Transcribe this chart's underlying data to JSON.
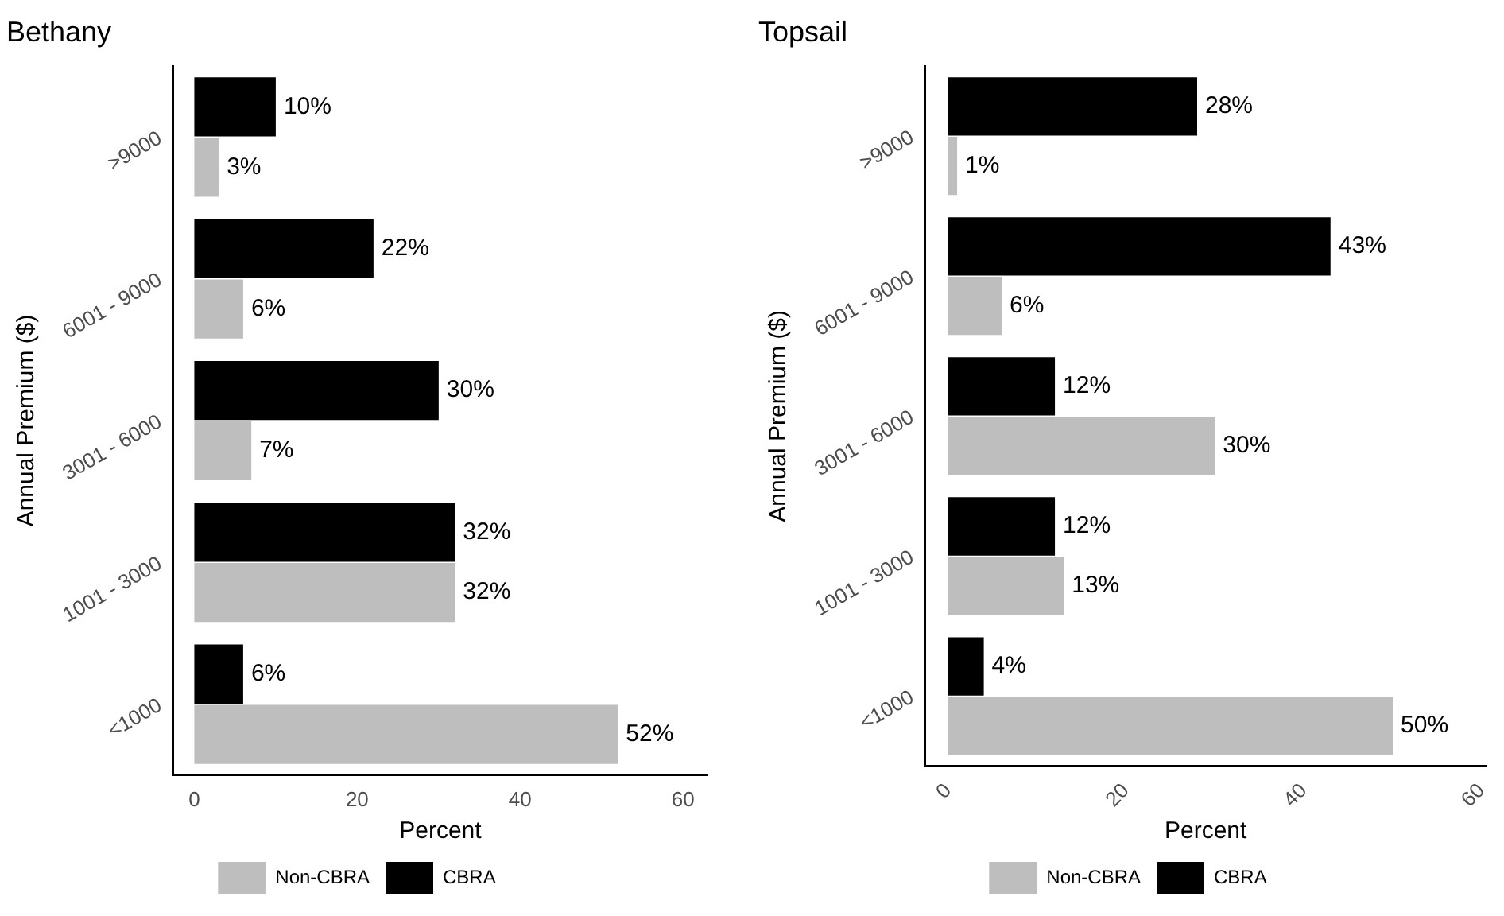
{
  "chart_data": [
    {
      "type": "bar",
      "orientation": "horizontal",
      "title": "Bethany",
      "xlabel": "Percent",
      "ylabel": "Annual Premium ($)",
      "categories": [
        ">9000",
        "6001 - 9000",
        "3001 - 6000",
        "1001 - 3000",
        "<1000"
      ],
      "series": [
        {
          "name": "CBRA",
          "color": "#000000",
          "values": [
            10,
            22,
            30,
            32,
            6
          ],
          "value_labels": [
            "10%",
            "22%",
            "30%",
            "32%",
            "6%"
          ]
        },
        {
          "name": "Non-CBRA",
          "color": "#bebebe",
          "values": [
            3,
            6,
            7,
            32,
            52
          ],
          "value_labels": [
            "3%",
            "6%",
            "7%",
            "32%",
            "52%"
          ]
        }
      ],
      "xlim": [
        -2.6,
        63
      ],
      "xticks": [
        0,
        20,
        40,
        60
      ],
      "grid": false,
      "legend": "bottom"
    },
    {
      "type": "bar",
      "orientation": "horizontal",
      "title": "Topsail",
      "xlabel": "Percent",
      "ylabel": "Annual Premium ($)",
      "categories": [
        ">9000",
        "6001 - 9000",
        "3001 - 6000",
        "1001 - 3000",
        "<1000"
      ],
      "series": [
        {
          "name": "CBRA",
          "color": "#000000",
          "values": [
            28,
            43,
            12,
            12,
            4
          ],
          "value_labels": [
            "28%",
            "43%",
            "12%",
            "12%",
            "4%"
          ]
        },
        {
          "name": "Non-CBRA",
          "color": "#bebebe",
          "values": [
            1,
            6,
            30,
            13,
            50
          ],
          "value_labels": [
            "1%",
            "6%",
            "30%",
            "13%",
            "50%"
          ]
        }
      ],
      "xlim": [
        -2.6,
        60.5
      ],
      "xticks": [
        0,
        20,
        40,
        60
      ],
      "grid": false,
      "legend": "bottom"
    }
  ]
}
